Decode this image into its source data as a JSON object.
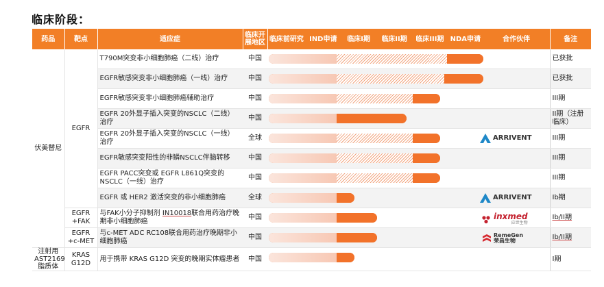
{
  "title": "临床阶段：",
  "headers": {
    "drug": "药品",
    "target": "靶点",
    "indication": "适应症",
    "region": "临床开展地区",
    "preclinical": "临床前研究",
    "ind": "IND申请",
    "phase1": "临床I期",
    "phase2": "临床II期",
    "phase3": "临床III期",
    "nda": "NDA申请",
    "partner": "合作伙伴",
    "note": "备注"
  },
  "drugs": {
    "furmonertinib": "伏美替尼",
    "ast2169": "注射用AST2169脂质体"
  },
  "targets": {
    "egfr": "EGFR",
    "egfr_fak": "EGFR +FAK",
    "egfr_cmet": "EGFR +c-MET",
    "kras": "KRAS G12D"
  },
  "rows": [
    {
      "indication": "T790M突变非小细胞肺癌（二线）治疗",
      "region": "中国",
      "note": "已获批",
      "stage": "NDA",
      "partner": ""
    },
    {
      "indication": "EGFR敏感突变非小细胞肺癌（一线）治疗",
      "region": "中国",
      "note": "已获批",
      "stage": "NDA",
      "partner": ""
    },
    {
      "indication": "EGFR敏感突变非小细胞肺癌辅助治疗",
      "region": "中国",
      "note": "III期",
      "stage": "Phase III",
      "partner": ""
    },
    {
      "indication": "EGFR 20外显子插入突变的NSCLC（二线）治疗",
      "region": "中国",
      "note": "II期（注册临床）",
      "stage": "Phase II",
      "partner": ""
    },
    {
      "indication": "EGFR 20外显子插入突变的NSCLC（一线）治疗",
      "region": "全球",
      "note": "III期",
      "stage": "Phase III",
      "partner": "ARRIVENT"
    },
    {
      "indication": "EGFR敏感突变阳性的非鳞NSCLC伴脑转移",
      "region": "中国",
      "note": "III期",
      "stage": "Phase III",
      "partner": ""
    },
    {
      "indication": "EGFR PACC突变或 EGFR L861Q突变的NSCLC（一线）治疗",
      "region": "中国",
      "note": "III期",
      "stage": "Phase III",
      "partner": ""
    },
    {
      "indication": "EGFR 或 HER2 激活突变的非小细胞肺癌",
      "region": "全球",
      "note": "Ib期",
      "stage": "Phase I",
      "partner": "ARRIVENT"
    },
    {
      "indication_prefix": "与FAK小分子抑制剂 ",
      "indication_code": "IN10018",
      "indication_suffix": "联合用药治疗晚期非小细胞肺癌",
      "region": "中国",
      "note": "Ib/II期",
      "stage": "Phase II",
      "partner": "inxmed"
    },
    {
      "indication": "与c-MET ADC RC108联合用药治疗晚期非小细胞肺癌",
      "region": "中国",
      "note": "Ib/II期",
      "stage": "Phase II",
      "partner": "RemeGen"
    },
    {
      "indication": "用于携带 KRAS G12D 突变的晚期实体瘤患者",
      "region": "中国",
      "note": "I期",
      "stage": "Phase I",
      "partner": ""
    }
  ],
  "partners": {
    "arrivent": "ARRIVENT",
    "inxmed": "inxmed",
    "inxmed_sub": "应世生物",
    "remegen_en": "RemeGen",
    "remegen_cn": "荣昌生物"
  },
  "colors": {
    "header": "#f27f26",
    "bar_solid": "#f2722a",
    "bar_light": "#fbe5dc",
    "arrivent_blue": "#1e88c8",
    "inxmed_red": "#c4222f",
    "remegen_red": "#d6282f"
  }
}
